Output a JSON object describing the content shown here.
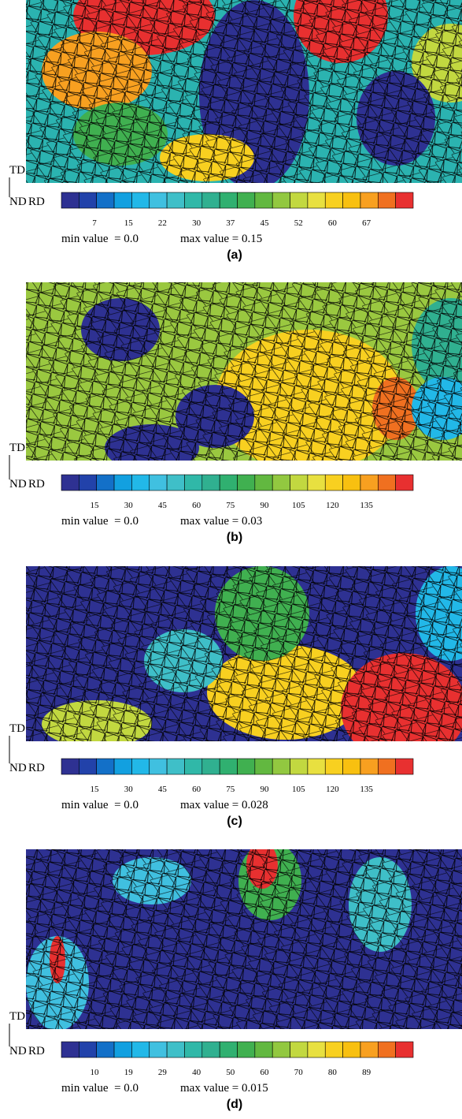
{
  "axes": {
    "td": "TD",
    "nd": "ND",
    "rd": "RD"
  },
  "panels": [
    {
      "colorbar_labels": [
        "7",
        "15",
        "22",
        "30",
        "37",
        "45",
        "52",
        "60",
        "67"
      ],
      "min_text": "min value  = 0.0",
      "max_text": "max value = 0.15",
      "label": "(a)"
    },
    {
      "colorbar_labels": [
        "15",
        "30",
        "45",
        "60",
        "75",
        "90",
        "105",
        "120",
        "135"
      ],
      "min_text": "min value  = 0.0",
      "max_text": "max value = 0.03",
      "label": "(b)"
    },
    {
      "colorbar_labels": [
        "15",
        "30",
        "45",
        "60",
        "75",
        "90",
        "105",
        "120",
        "135"
      ],
      "min_text": "min value  = 0.0",
      "max_text": "max value = 0.028",
      "label": "(c)"
    },
    {
      "colorbar_labels": [
        "10",
        "19",
        "29",
        "40",
        "50",
        "60",
        "70",
        "80",
        "89"
      ],
      "min_text": "min value  = 0.0",
      "max_text": "max value = 0.015",
      "label": "(d)"
    }
  ]
}
